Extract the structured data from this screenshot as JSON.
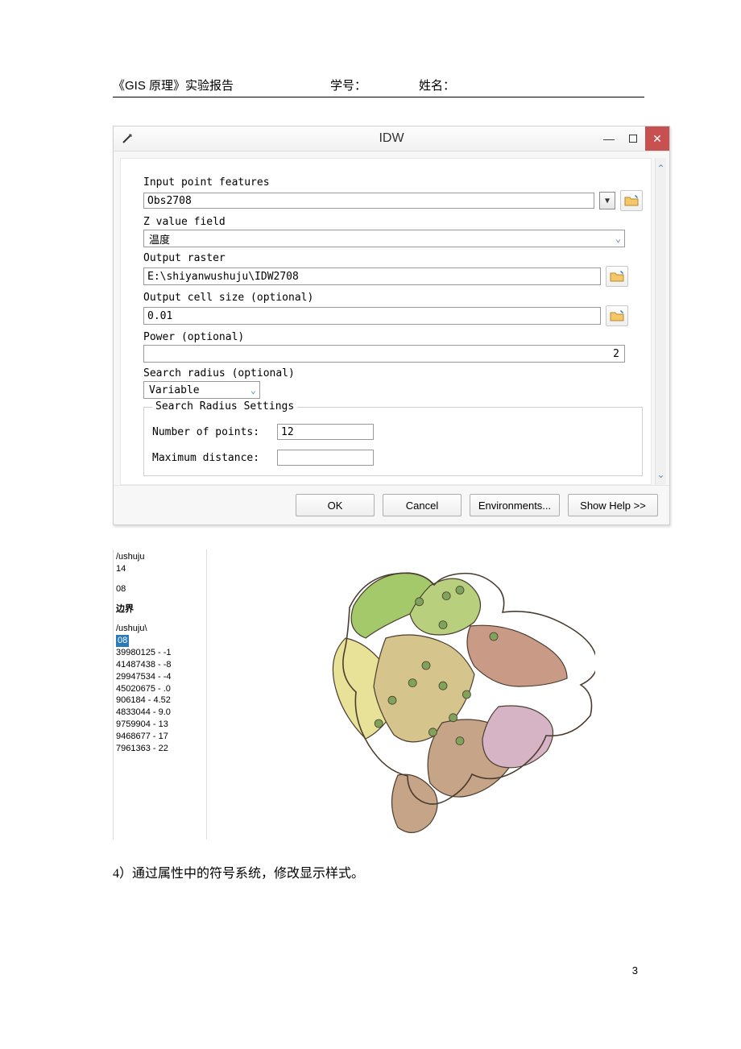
{
  "doc_header": {
    "title": "《GIS 原理》实验报告",
    "student_id_label": "学号：",
    "name_label": "姓名："
  },
  "dialog": {
    "title": "IDW",
    "labels": {
      "input_point_features": "Input point features",
      "z_value_field": "Z value field",
      "output_raster": "Output raster",
      "output_cell_size": "Output cell size (optional)",
      "power": "Power (optional)",
      "search_radius": "Search radius (optional)",
      "group_title": "Search Radius Settings",
      "num_points": "Number of points:",
      "max_distance": "Maximum distance:"
    },
    "values": {
      "input_point_features": "Obs2708",
      "z_value_field": "温度",
      "output_raster": "E:\\shiyanwushuju\\IDW2708",
      "output_cell_size": "0.01",
      "power": "2",
      "search_radius": "Variable",
      "num_points": "12",
      "max_distance": ""
    },
    "buttons": {
      "ok": "OK",
      "cancel": "Cancel",
      "env": "Environments...",
      "help": "Show Help >>"
    }
  },
  "toc": {
    "line1": "/ushuju",
    "line2": "14",
    "line3": "08",
    "line4": "边界",
    "line5": "/ushuju\\",
    "highlight": "08",
    "ranges": [
      "39980125 - -1",
      "41487438 - -8",
      "29947534 - -4",
      "45020675 - .0",
      "906184 - 4.52",
      "4833044 - 9.0",
      "9759904 - 13",
      "9468677 - 17",
      "7961363 - 22"
    ]
  },
  "map": {
    "outline_color": "#4a3d2f",
    "region_colors": {
      "nw": "#a3c96b",
      "n": "#b8d07e",
      "w": "#e7e297",
      "c": "#d6c48d",
      "e": "#c99a86",
      "se": "#d6b4c6",
      "s": "#c5a488"
    },
    "point_color": "#7fa35b",
    "points": [
      [
        0.48,
        0.18
      ],
      [
        0.56,
        0.16
      ],
      [
        0.6,
        0.14
      ],
      [
        0.55,
        0.26
      ],
      [
        0.7,
        0.3
      ],
      [
        0.5,
        0.4
      ],
      [
        0.46,
        0.46
      ],
      [
        0.55,
        0.47
      ],
      [
        0.62,
        0.5
      ],
      [
        0.58,
        0.58
      ],
      [
        0.52,
        0.63
      ],
      [
        0.6,
        0.66
      ],
      [
        0.4,
        0.52
      ],
      [
        0.36,
        0.6
      ]
    ]
  },
  "caption": "4）通过属性中的符号系统，修改显示样式。",
  "page_number": "3"
}
